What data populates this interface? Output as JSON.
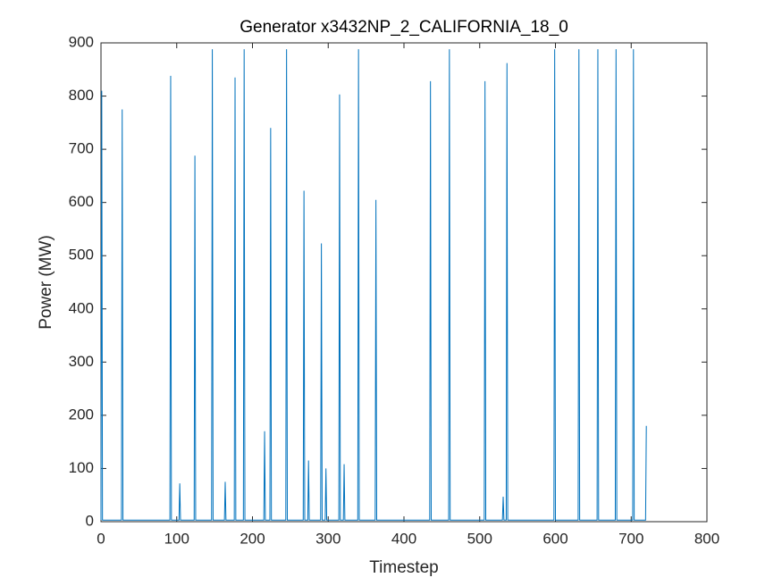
{
  "chart_data": {
    "type": "line",
    "title": "Generator x3432NP_2_CALIFORNIA_18_0",
    "x_label": "Timestep",
    "y_label": "Power (MW)",
    "x": [
      0,
      1,
      2,
      27,
      28,
      29,
      91,
      92,
      93,
      103,
      104,
      105,
      123,
      124,
      125,
      146,
      147,
      148,
      163,
      164,
      165,
      176,
      177,
      178,
      188,
      189,
      190,
      215,
      216,
      217,
      223,
      224,
      225,
      244,
      245,
      246,
      267,
      268,
      269,
      273,
      274,
      275,
      290,
      291,
      292,
      296,
      297,
      298,
      314,
      315,
      316,
      320,
      321,
      322,
      339,
      340,
      341,
      362,
      363,
      364,
      434,
      435,
      436,
      459,
      460,
      461,
      506,
      507,
      508,
      530,
      531,
      532,
      535,
      536,
      537,
      598,
      599,
      600,
      630,
      631,
      632,
      655,
      656,
      657,
      679,
      680,
      681,
      702,
      703,
      704,
      719,
      720
    ],
    "series": [
      {
        "color": "#0072bd",
        "values": [
          3,
          810,
          3,
          3,
          775,
          3,
          3,
          838,
          3,
          3,
          72,
          3,
          3,
          688,
          3,
          3,
          888,
          3,
          3,
          75,
          3,
          3,
          835,
          3,
          3,
          888,
          3,
          3,
          170,
          3,
          3,
          740,
          3,
          3,
          888,
          3,
          3,
          622,
          3,
          3,
          115,
          3,
          3,
          523,
          3,
          3,
          100,
          3,
          3,
          803,
          3,
          3,
          108,
          3,
          3,
          888,
          3,
          3,
          605,
          3,
          3,
          828,
          3,
          3,
          888,
          3,
          3,
          828,
          3,
          3,
          47,
          3,
          3,
          862,
          3,
          3,
          888,
          3,
          3,
          888,
          3,
          3,
          888,
          3,
          3,
          888,
          3,
          3,
          888,
          3,
          3,
          180
        ]
      }
    ],
    "xlim": [
      0,
      800
    ],
    "ylim": [
      0,
      900
    ],
    "xticks": [
      0,
      100,
      200,
      300,
      400,
      500,
      600,
      700,
      800
    ],
    "yticks": [
      0,
      100,
      200,
      300,
      400,
      500,
      600,
      700,
      800,
      900
    ]
  }
}
